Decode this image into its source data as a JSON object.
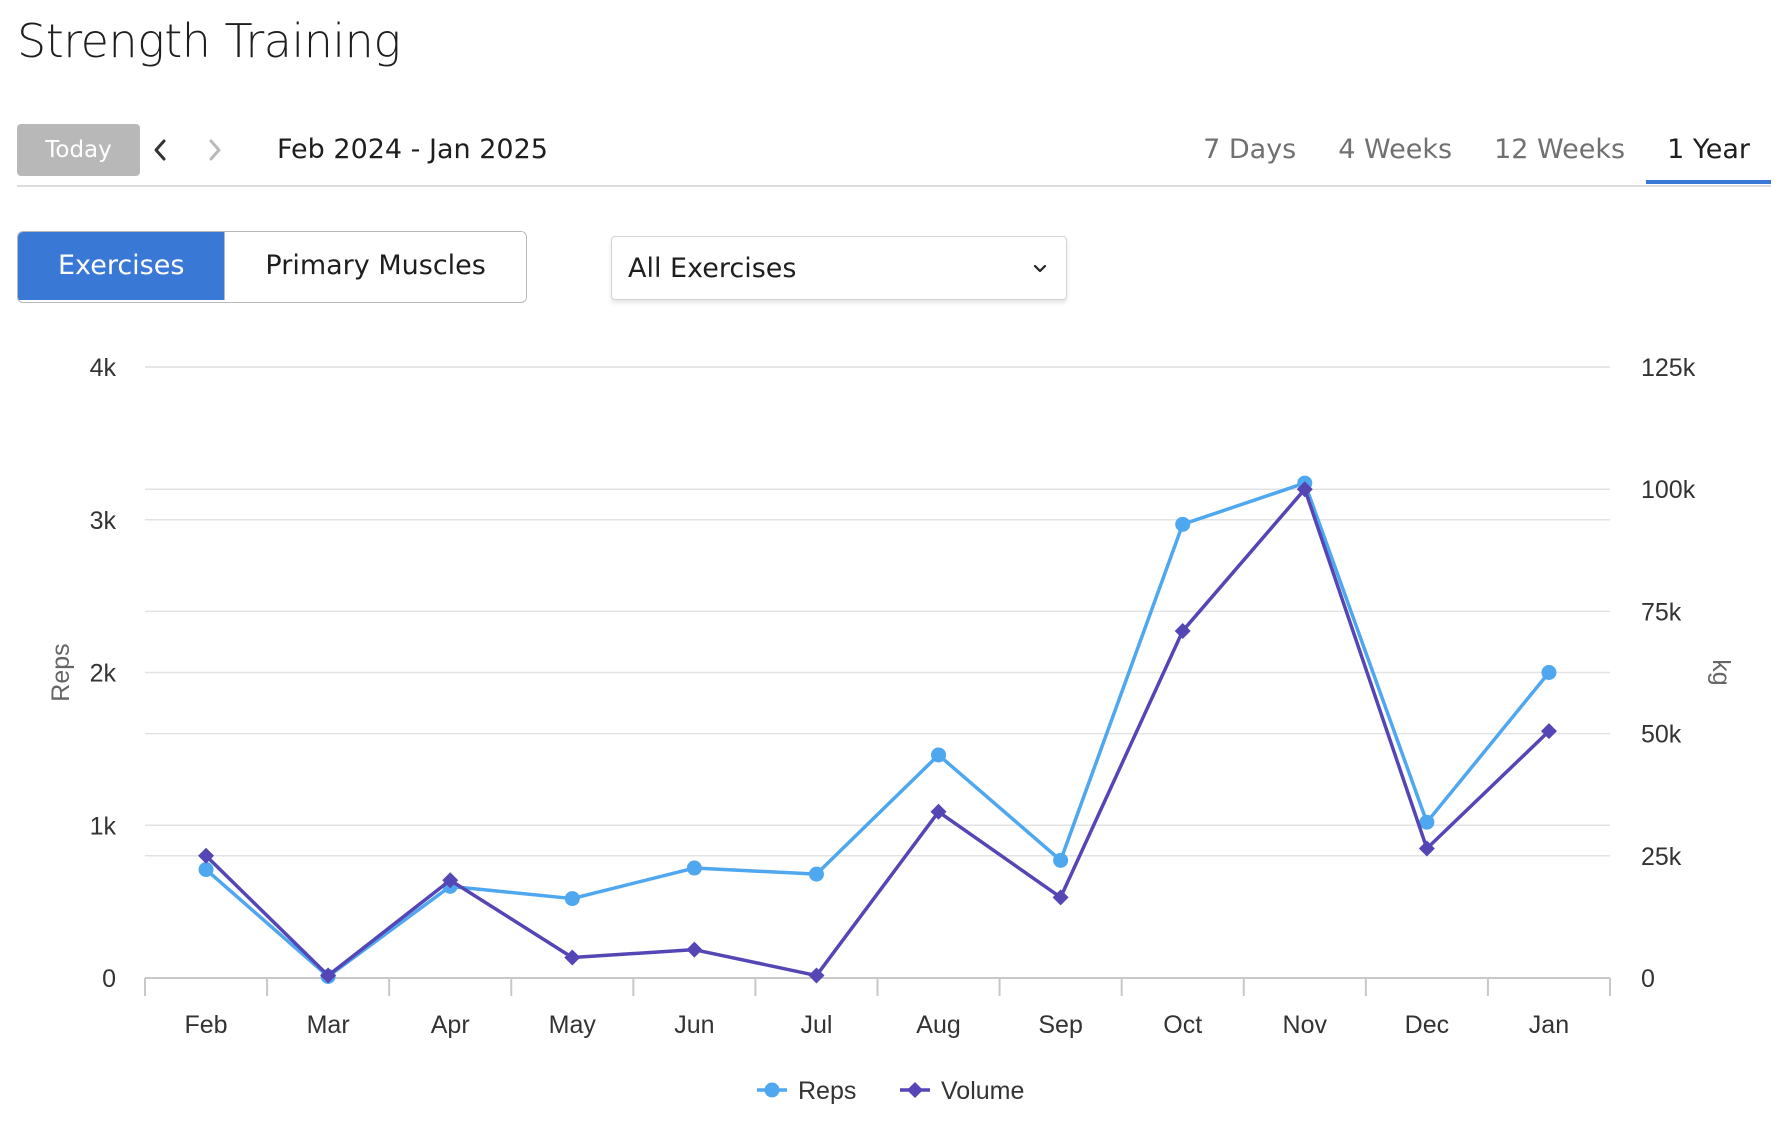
{
  "page": {
    "title": "Strength Training"
  },
  "toolbar": {
    "today_label": "Today",
    "prev_icon": "chevron-left-icon",
    "next_icon": "chevron-right-icon",
    "date_range": "Feb 2024 - Jan 2025",
    "range_tabs": [
      "7 Days",
      "4 Weeks",
      "12 Weeks",
      "1 Year"
    ],
    "active_range": "1 Year"
  },
  "view_toggle": {
    "options": [
      "Exercises",
      "Primary Muscles"
    ],
    "active": "Exercises"
  },
  "exercise_filter": {
    "selected": "All Exercises",
    "icon": "chevron-down-icon"
  },
  "colors": {
    "accent": "#3a78d5",
    "reps": "#4ea7ef",
    "volume": "#5546b6",
    "grid": "#e3e3e3"
  },
  "chart_data": {
    "type": "line",
    "categories": [
      "Feb",
      "Mar",
      "Apr",
      "May",
      "Jun",
      "Jul",
      "Aug",
      "Sep",
      "Oct",
      "Nov",
      "Dec",
      "Jan"
    ],
    "series": [
      {
        "name": "Reps",
        "axis": "left",
        "marker": "circle",
        "values": [
          710,
          10,
          600,
          520,
          720,
          680,
          1460,
          770,
          2970,
          3240,
          1020,
          2000
        ]
      },
      {
        "name": "Volume",
        "axis": "right",
        "marker": "diamond",
        "values": [
          25000,
          500,
          20000,
          4200,
          5800,
          500,
          34000,
          16500,
          71000,
          100000,
          26500,
          50500
        ]
      }
    ],
    "y_left": {
      "label": "Reps",
      "ylim": [
        0,
        4000
      ],
      "ticks": [
        0,
        1000,
        2000,
        3000,
        4000
      ],
      "tick_labels": [
        "0",
        "1k",
        "2k",
        "3k",
        "4k"
      ]
    },
    "y_right": {
      "label": "kg",
      "ylim": [
        0,
        125000
      ],
      "ticks": [
        0,
        25000,
        50000,
        75000,
        100000,
        125000
      ],
      "tick_labels": [
        "0",
        "25k",
        "50k",
        "75k",
        "100k",
        "125k"
      ]
    },
    "grid": true,
    "legend": "bottom-center"
  }
}
